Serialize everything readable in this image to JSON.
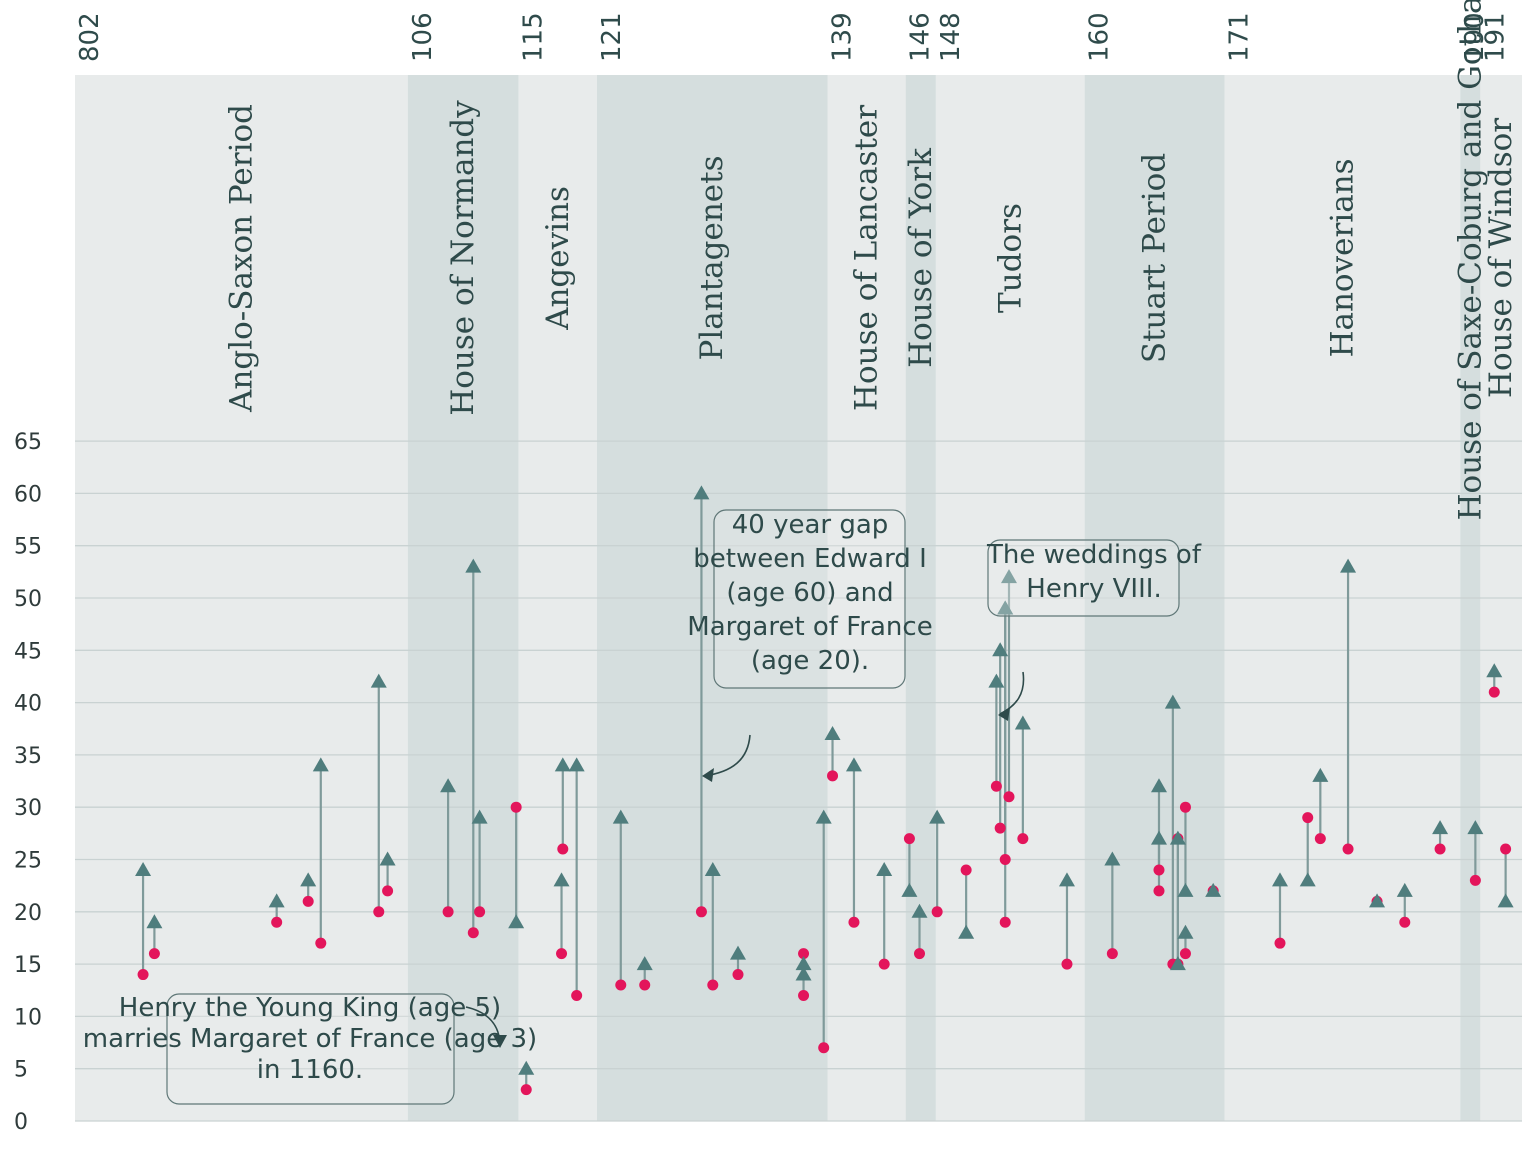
{
  "chart_data": {
    "type": "scatter",
    "xlim": [
      802,
      1950
    ],
    "ylim": [
      0,
      65
    ],
    "yticks": [
      0,
      5,
      10,
      15,
      20,
      25,
      30,
      35,
      40,
      45,
      50,
      55,
      60,
      65
    ],
    "periods": [
      {
        "name": "Anglo-Saxon Period",
        "start": 802,
        "end": 1066,
        "start_label": "802",
        "shade": "light"
      },
      {
        "name": "House of Normandy",
        "start": 1066,
        "end": 1154,
        "start_label": "106",
        "shade": "dark"
      },
      {
        "name": "Angevins",
        "start": 1154,
        "end": 1216,
        "start_label": "115",
        "shade": "light"
      },
      {
        "name": "Plantagenets",
        "start": 1216,
        "end": 1399,
        "start_label": "121",
        "shade": "dark"
      },
      {
        "name": "House of Lancaster",
        "start": 1399,
        "end": 1461,
        "start_label": "139",
        "shade": "light"
      },
      {
        "name": "House of York",
        "start": 1461,
        "end": 1485,
        "start_label": "146",
        "shade": "dark"
      },
      {
        "name": "Tudors",
        "start": 1485,
        "end": 1603,
        "start_label": "148",
        "shade": "light"
      },
      {
        "name": "Stuart Period",
        "start": 1603,
        "end": 1714,
        "start_label": "160",
        "shade": "dark"
      },
      {
        "name": "Hanoverians",
        "start": 1714,
        "end": 1901,
        "start_label": "171",
        "shade": "light"
      },
      {
        "name": "House of Saxe-Coburg and Gotha",
        "start": 1901,
        "end": 1917,
        "start_label": "190",
        "shade": "dark"
      },
      {
        "name": "House of Windsor",
        "start": 1917,
        "end": 1950,
        "start_label": "191",
        "shade": "light"
      }
    ],
    "marriages": [
      {
        "year": 856,
        "king_age": 24,
        "consort_age": 14
      },
      {
        "year": 865,
        "king_age": 19,
        "consort_age": 16
      },
      {
        "year": 962,
        "king_age": 21,
        "consort_age": 19
      },
      {
        "year": 987,
        "king_age": 23,
        "consort_age": 21
      },
      {
        "year": 997,
        "king_age": 34,
        "consort_age": 17
      },
      {
        "year": 1043,
        "king_age": 42,
        "consort_age": 20
      },
      {
        "year": 1050,
        "king_age": 25,
        "consort_age": 22
      },
      {
        "year": 1098,
        "king_age": 32,
        "consort_age": 20
      },
      {
        "year": 1118,
        "king_age": 53,
        "consort_age": 18
      },
      {
        "year": 1123,
        "king_age": 29,
        "consort_age": 20
      },
      {
        "year": 1152,
        "king_age": 19,
        "consort_age": 30
      },
      {
        "year": 1160,
        "king_age": 5,
        "consort_age": 3
      },
      {
        "year": 1189,
        "king_age": 34,
        "consort_age": 26
      },
      {
        "year": 1188,
        "king_age": 23,
        "consort_age": 16
      },
      {
        "year": 1200,
        "king_age": 34,
        "consort_age": 12
      },
      {
        "year": 1235,
        "king_age": 29,
        "consort_age": 13
      },
      {
        "year": 1254,
        "king_age": 15,
        "consort_age": 13
      },
      {
        "year": 1299,
        "king_age": 60,
        "consort_age": 20
      },
      {
        "year": 1308,
        "king_age": 24,
        "consort_age": 13
      },
      {
        "year": 1328,
        "king_age": 16,
        "consort_age": 14
      },
      {
        "year": 1380,
        "king_age": 15,
        "consort_age": 16
      },
      {
        "year": 1380,
        "king_age": 14,
        "consort_age": 12
      },
      {
        "year": 1396,
        "king_age": 29,
        "consort_age": 7
      },
      {
        "year": 1403,
        "king_age": 37,
        "consort_age": 33
      },
      {
        "year": 1420,
        "king_age": 34,
        "consort_age": 19
      },
      {
        "year": 1444,
        "king_age": 24,
        "consort_age": 15
      },
      {
        "year": 1464,
        "king_age": 22,
        "consort_age": 27
      },
      {
        "year": 1472,
        "king_age": 20,
        "consort_age": 16
      },
      {
        "year": 1486,
        "king_age": 29,
        "consort_age": 20
      },
      {
        "year": 1509,
        "king_age": 18,
        "consort_age": 24
      },
      {
        "year": 1533,
        "king_age": 42,
        "consort_age": 32
      },
      {
        "year": 1536,
        "king_age": 45,
        "consort_age": 28
      },
      {
        "year": 1540,
        "king_age": 49,
        "consort_age": 25
      },
      {
        "year": 1540,
        "king_age": 49,
        "consort_age": 19
      },
      {
        "year": 1543,
        "king_age": 52,
        "consort_age": 31
      },
      {
        "year": 1554,
        "king_age": 38,
        "consort_age": 27
      },
      {
        "year": 1589,
        "king_age": 23,
        "consort_age": 15
      },
      {
        "year": 1625,
        "king_age": 25,
        "consort_age": 16
      },
      {
        "year": 1662,
        "king_age": 32,
        "consort_age": 24
      },
      {
        "year": 1662,
        "king_age": 27,
        "consort_age": 22
      },
      {
        "year": 1673,
        "king_age": 40,
        "consort_age": 15
      },
      {
        "year": 1677,
        "king_age": 27,
        "consort_age": 15
      },
      {
        "year": 1677,
        "king_age": 15,
        "consort_age": 27
      },
      {
        "year": 1683,
        "king_age": 22,
        "consort_age": 30
      },
      {
        "year": 1683,
        "king_age": 18,
        "consort_age": 16
      },
      {
        "year": 1705,
        "king_age": 22,
        "consort_age": 22
      },
      {
        "year": 1758,
        "king_age": 23,
        "consort_age": 17
      },
      {
        "year": 1780,
        "king_age": 23,
        "consort_age": 29
      },
      {
        "year": 1790,
        "king_age": 33,
        "consort_age": 27
      },
      {
        "year": 1812,
        "king_age": 53,
        "consort_age": 26
      },
      {
        "year": 1835,
        "king_age": 21,
        "consort_age": 21
      },
      {
        "year": 1857,
        "king_age": 22,
        "consort_age": 19
      },
      {
        "year": 1885,
        "king_age": 28,
        "consort_age": 26
      },
      {
        "year": 1913,
        "king_age": 28,
        "consort_age": 23
      },
      {
        "year": 1928,
        "king_age": 43,
        "consort_age": 41
      },
      {
        "year": 1937,
        "king_age": 21,
        "consort_age": 26
      }
    ],
    "annotations": [
      {
        "text": "Henry the Young King (age 5) marries Margaret of France (age 3) in 1160.",
        "lines": [
          "Henry the Young King (age 5)",
          "marries Margaret of France (age 3)",
          "in 1160."
        ]
      },
      {
        "text": "40 year gap between Edward I (age 60) and Margaret of France (age 20).",
        "lines": [
          "40 year gap",
          "between Edward I",
          "(age 60) and",
          "Margaret of France",
          "(age 20)."
        ]
      },
      {
        "text": "The weddings of Henry VIII.",
        "lines": [
          "The weddings of",
          "Henry VIII."
        ]
      }
    ],
    "colors": {
      "king_marker": "#4f7d7d",
      "consort_marker": "#e3155b",
      "connector": "#7f9a9a",
      "band_light": "#e8ebeb",
      "band_dark": "#d5dede",
      "text": "#2e4a4a"
    }
  }
}
